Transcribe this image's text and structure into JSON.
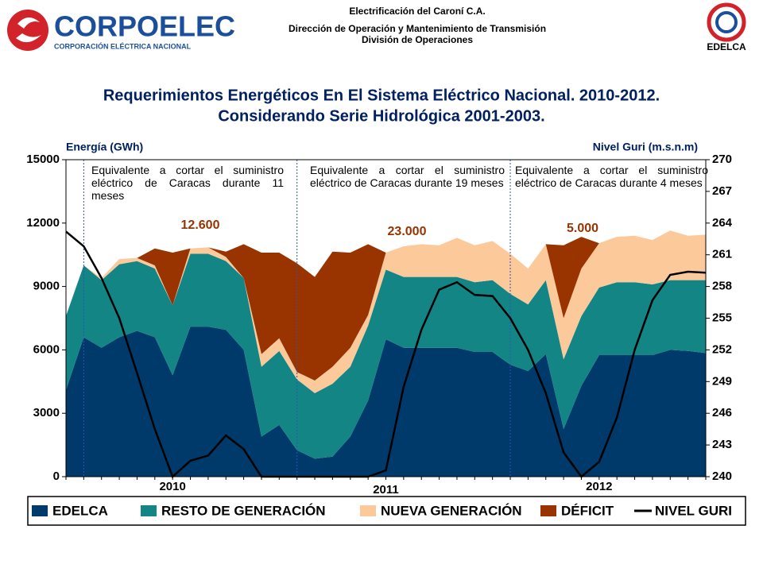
{
  "header": {
    "lines": [
      "Electrificación del Caroní C.A.",
      "Dirección de Operación y Mantenimiento de Transmisión",
      "División de Operaciones"
    ],
    "logo_left": "CORPOELEC",
    "logo_left_sub": "CORPORACIÓN ELÉCTRICA NACIONAL",
    "logo_right": "EDELCA"
  },
  "chart_data": {
    "type": "stacked_area_line",
    "title": [
      "Requerimientos Energéticos En El Sistema Eléctrico Nacional. 2010-2012.",
      "Considerando Serie Hidrológica 2001-2003."
    ],
    "y_label": "Energía (GWh)",
    "y2_label": "Nivel Guri (m.s.n.m)",
    "categories": [
      null,
      null,
      null,
      null,
      null,
      null,
      null,
      null,
      null,
      null,
      null,
      null,
      null,
      null,
      null,
      null,
      null,
      null,
      null,
      null,
      null,
      null,
      null,
      null,
      null,
      null,
      null,
      null,
      null,
      null,
      null,
      null,
      null,
      null,
      null,
      null,
      null
    ],
    "year_labels": [
      {
        "text": "2010",
        "index": 6
      },
      {
        "text": "2011",
        "index": 18
      },
      {
        "text": "2012",
        "index": 30
      }
    ],
    "ylim": [
      0,
      15000
    ],
    "yticks": [
      0,
      3000,
      6000,
      9000,
      12000,
      15000
    ],
    "y2lim": [
      240,
      270
    ],
    "y2ticks": [
      240,
      243,
      246,
      249,
      252,
      255,
      258,
      261,
      264,
      267,
      270
    ],
    "series": [
      {
        "name": "EDELCA",
        "color": "#003a6b",
        "values": [
          4100,
          6600,
          6100,
          6600,
          6900,
          6600,
          4800,
          7100,
          7100,
          6950,
          6000,
          1900,
          2450,
          1250,
          850,
          950,
          1900,
          3600,
          6500,
          6100,
          6100,
          6100,
          6100,
          5900,
          5900,
          5300,
          5000,
          5800,
          2250,
          4300,
          5750,
          5750,
          5750,
          5750,
          6000,
          5950,
          5850
        ]
      },
      {
        "name": "RESTO DE GENERACIÓN",
        "color": "#138585",
        "values": [
          3500,
          3400,
          3200,
          3450,
          3300,
          3250,
          3300,
          3450,
          3450,
          3250,
          3400,
          3300,
          3500,
          3350,
          3100,
          3450,
          3300,
          3550,
          3300,
          3350,
          3350,
          3350,
          3350,
          3300,
          3400,
          3350,
          3150,
          3500,
          3300,
          3300,
          3200,
          3450,
          3450,
          3350,
          3300,
          3350,
          3450
        ]
      },
      {
        "name": "NUEVA GENERACIÓN",
        "color": "#fcc99b",
        "values": [
          0,
          0,
          100,
          250,
          150,
          150,
          0,
          250,
          300,
          200,
          0,
          600,
          600,
          350,
          600,
          800,
          900,
          500,
          800,
          1450,
          1550,
          1500,
          1850,
          1750,
          1850,
          1900,
          1700,
          1700,
          1950,
          2250,
          2100,
          2150,
          2200,
          2100,
          2350,
          2100,
          2150
        ]
      },
      {
        "name": "DÉFICIT",
        "color": "#993300",
        "values": [
          0,
          0,
          0,
          0,
          0,
          800,
          2500,
          0,
          0,
          250,
          1600,
          4800,
          4050,
          5150,
          4900,
          5450,
          4500,
          3350,
          0,
          0,
          0,
          0,
          0,
          0,
          0,
          0,
          0,
          0,
          3450,
          1500,
          0,
          0,
          0,
          0,
          0,
          0,
          0
        ]
      },
      {
        "name": "NIVEL GURI",
        "color": "#000000",
        "axis": "y2",
        "values": [
          263.2,
          261.8,
          258.8,
          255.0,
          249.8,
          244.5,
          240.0,
          241.5,
          242.0,
          243.9,
          242.6,
          240,
          240,
          240,
          240,
          240,
          240,
          240,
          240.6,
          248.5,
          253.9,
          257.7,
          258.4,
          257.2,
          257.1,
          255.0,
          252.0,
          247.9,
          242.3,
          240,
          241.4,
          245.6,
          252.0,
          256.7,
          259.1,
          259.4,
          259.3
        ]
      }
    ],
    "annotations": [
      {
        "text": "Equivalente a cortar el suministro eléctrico de Caracas durante 11 meses",
        "value_text": "12.600"
      },
      {
        "text": "Equivalente a cortar el suministro eléctrico de Caracas durante 19 meses",
        "value_text": "23.000"
      },
      {
        "text": "Equivalente a cortar el suministro eléctrico de Caracas durante 4 meses",
        "value_text": "5.000"
      }
    ]
  }
}
